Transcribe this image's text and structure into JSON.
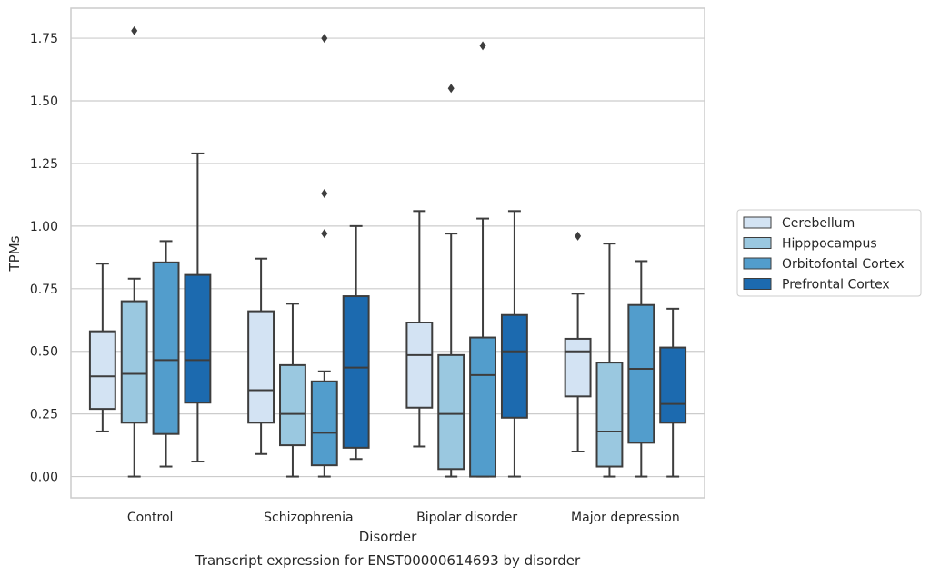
{
  "chart_data": {
    "type": "boxplot",
    "title": "",
    "caption": "Transcript expression for ENST00000614693 by disorder",
    "xlabel": "Disorder",
    "ylabel": "TPMs",
    "ylim": [
      -0.085,
      1.87
    ],
    "yticks": [
      0.0,
      0.25,
      0.5,
      0.75,
      1.0,
      1.25,
      1.5,
      1.75
    ],
    "ytick_labels": [
      "0.00",
      "0.25",
      "0.50",
      "0.75",
      "1.00",
      "1.25",
      "1.50",
      "1.75"
    ],
    "categories": [
      "Control",
      "Schizophrenia",
      "Bipolar disorder",
      "Major depression"
    ],
    "grid": "horizontal",
    "legend_position": "right",
    "series": [
      {
        "name": "Cerebellum",
        "color": "#d3e3f3",
        "boxes": [
          {
            "whislo": 0.18,
            "q1": 0.27,
            "med": 0.4,
            "q3": 0.58,
            "whishi": 0.85,
            "fliers": []
          },
          {
            "whislo": 0.09,
            "q1": 0.215,
            "med": 0.345,
            "q3": 0.66,
            "whishi": 0.87,
            "fliers": []
          },
          {
            "whislo": 0.12,
            "q1": 0.275,
            "med": 0.485,
            "q3": 0.615,
            "whishi": 1.06,
            "fliers": []
          },
          {
            "whislo": 0.1,
            "q1": 0.32,
            "med": 0.5,
            "q3": 0.55,
            "whishi": 0.73,
            "fliers": [
              0.96
            ]
          }
        ]
      },
      {
        "name": "Hipppocampus",
        "color": "#9ac8e0",
        "boxes": [
          {
            "whislo": 0.0,
            "q1": 0.215,
            "med": 0.41,
            "q3": 0.7,
            "whishi": 0.79,
            "fliers": [
              1.78
            ]
          },
          {
            "whislo": 0.0,
            "q1": 0.125,
            "med": 0.25,
            "q3": 0.445,
            "whishi": 0.69,
            "fliers": []
          },
          {
            "whislo": 0.0,
            "q1": 0.03,
            "med": 0.25,
            "q3": 0.485,
            "whishi": 0.97,
            "fliers": [
              1.55
            ]
          },
          {
            "whislo": 0.0,
            "q1": 0.04,
            "med": 0.18,
            "q3": 0.455,
            "whishi": 0.93,
            "fliers": []
          }
        ]
      },
      {
        "name": "Orbitofontal Cortex",
        "color": "#529dcc",
        "boxes": [
          {
            "whislo": 0.04,
            "q1": 0.17,
            "med": 0.465,
            "q3": 0.855,
            "whishi": 0.94,
            "fliers": []
          },
          {
            "whislo": 0.0,
            "q1": 0.045,
            "med": 0.175,
            "q3": 0.38,
            "whishi": 0.42,
            "fliers": [
              1.13,
              0.97,
              1.75
            ]
          },
          {
            "whislo": 0.0,
            "q1": 0.0,
            "med": 0.405,
            "q3": 0.555,
            "whishi": 1.03,
            "fliers": [
              1.72
            ]
          },
          {
            "whislo": 0.0,
            "q1": 0.135,
            "med": 0.43,
            "q3": 0.685,
            "whishi": 0.86,
            "fliers": []
          }
        ]
      },
      {
        "name": "Prefrontal Cortex",
        "color": "#1c6aaf",
        "boxes": [
          {
            "whislo": 0.06,
            "q1": 0.295,
            "med": 0.465,
            "q3": 0.805,
            "whishi": 1.29,
            "fliers": []
          },
          {
            "whislo": 0.07,
            "q1": 0.115,
            "med": 0.435,
            "q3": 0.72,
            "whishi": 1.0,
            "fliers": []
          },
          {
            "whislo": 0.0,
            "q1": 0.235,
            "med": 0.5,
            "q3": 0.645,
            "whishi": 1.06,
            "fliers": []
          },
          {
            "whislo": 0.0,
            "q1": 0.215,
            "med": 0.29,
            "q3": 0.515,
            "whishi": 0.67,
            "fliers": []
          }
        ]
      }
    ]
  }
}
